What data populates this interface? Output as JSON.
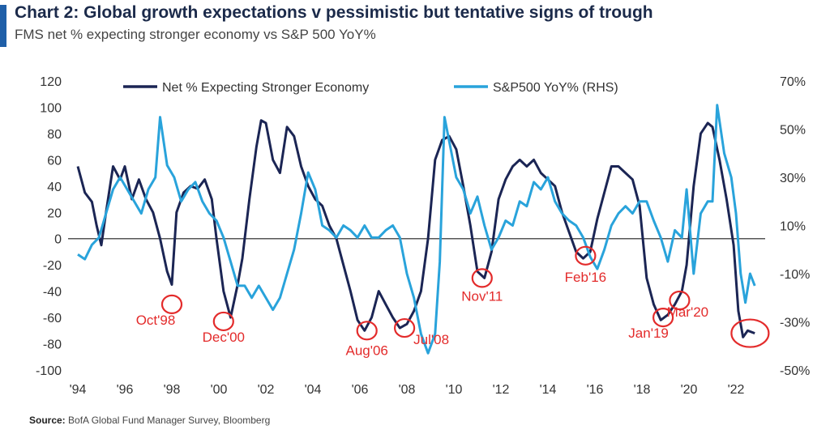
{
  "header": {
    "title": "Chart 2: Global growth expectations v pessimistic but tentative signs of trough",
    "subtitle": "FMS net % expecting stronger economy vs S&P 500 YoY%"
  },
  "footer": {
    "source_label": "Source:",
    "source_text": "BofA Global Fund Manager Survey, Bloomberg"
  },
  "colors": {
    "fms": "#1b2554",
    "spx": "#29a3db",
    "annotation": "#e32b2b",
    "zero": "#555555"
  },
  "chart_data": {
    "type": "line",
    "grid": false,
    "legend_position": "top",
    "x_ticks": [
      "'94",
      "'96",
      "'98",
      "'00",
      "'02",
      "'04",
      "'06",
      "'08",
      "'10",
      "'12",
      "'14",
      "'16",
      "'18",
      "'20",
      "'22"
    ],
    "y_left": {
      "ticks": [
        "120",
        "100",
        "80",
        "60",
        "40",
        "20",
        "0",
        "-20",
        "-40",
        "-60",
        "-80",
        "-100"
      ],
      "lim": [
        -100,
        120
      ]
    },
    "y_right": {
      "ticks": [
        "70%",
        "50%",
        "30%",
        "10%",
        "-10%",
        "-30%",
        "-50%"
      ],
      "lim": [
        -50,
        70
      ]
    },
    "series": [
      {
        "name": "Net % Expecting Stronger Economy",
        "axis": "left",
        "points": [
          [
            1994.0,
            55
          ],
          [
            1994.3,
            35
          ],
          [
            1994.6,
            28
          ],
          [
            1994.8,
            10
          ],
          [
            1995.0,
            -5
          ],
          [
            1995.2,
            20
          ],
          [
            1995.5,
            55
          ],
          [
            1995.8,
            45
          ],
          [
            1996.0,
            55
          ],
          [
            1996.3,
            30
          ],
          [
            1996.6,
            45
          ],
          [
            1996.9,
            30
          ],
          [
            1997.2,
            20
          ],
          [
            1997.5,
            0
          ],
          [
            1997.8,
            -25
          ],
          [
            1998.0,
            -35
          ],
          [
            1998.2,
            20
          ],
          [
            1998.5,
            35
          ],
          [
            1998.8,
            40
          ],
          [
            1999.1,
            38
          ],
          [
            1999.4,
            45
          ],
          [
            1999.7,
            30
          ],
          [
            1999.9,
            0
          ],
          [
            2000.2,
            -40
          ],
          [
            2000.5,
            -60
          ],
          [
            2000.8,
            -35
          ],
          [
            2001.0,
            -15
          ],
          [
            2001.3,
            30
          ],
          [
            2001.6,
            70
          ],
          [
            2001.8,
            90
          ],
          [
            2002.0,
            88
          ],
          [
            2002.3,
            60
          ],
          [
            2002.6,
            50
          ],
          [
            2002.9,
            85
          ],
          [
            2003.2,
            78
          ],
          [
            2003.5,
            55
          ],
          [
            2003.8,
            40
          ],
          [
            2004.1,
            30
          ],
          [
            2004.4,
            25
          ],
          [
            2004.7,
            10
          ],
          [
            2005.0,
            0
          ],
          [
            2005.3,
            -20
          ],
          [
            2005.6,
            -40
          ],
          [
            2005.9,
            -62
          ],
          [
            2006.2,
            -70
          ],
          [
            2006.5,
            -60
          ],
          [
            2006.8,
            -40
          ],
          [
            2007.1,
            -50
          ],
          [
            2007.4,
            -60
          ],
          [
            2007.7,
            -68
          ],
          [
            2008.0,
            -65
          ],
          [
            2008.3,
            -55
          ],
          [
            2008.6,
            -40
          ],
          [
            2008.9,
            0
          ],
          [
            2009.2,
            60
          ],
          [
            2009.5,
            75
          ],
          [
            2009.8,
            78
          ],
          [
            2010.1,
            68
          ],
          [
            2010.4,
            40
          ],
          [
            2010.7,
            10
          ],
          [
            2011.0,
            -25
          ],
          [
            2011.3,
            -30
          ],
          [
            2011.6,
            -10
          ],
          [
            2011.9,
            30
          ],
          [
            2012.2,
            45
          ],
          [
            2012.5,
            55
          ],
          [
            2012.8,
            60
          ],
          [
            2013.1,
            55
          ],
          [
            2013.4,
            60
          ],
          [
            2013.7,
            50
          ],
          [
            2014.0,
            45
          ],
          [
            2014.3,
            40
          ],
          [
            2014.6,
            20
          ],
          [
            2014.9,
            5
          ],
          [
            2015.2,
            -10
          ],
          [
            2015.5,
            -15
          ],
          [
            2015.8,
            -10
          ],
          [
            2016.1,
            15
          ],
          [
            2016.4,
            35
          ],
          [
            2016.7,
            55
          ],
          [
            2017.0,
            55
          ],
          [
            2017.3,
            50
          ],
          [
            2017.6,
            45
          ],
          [
            2017.9,
            25
          ],
          [
            2018.2,
            -30
          ],
          [
            2018.5,
            -50
          ],
          [
            2018.8,
            -62
          ],
          [
            2019.1,
            -58
          ],
          [
            2019.4,
            -50
          ],
          [
            2019.7,
            -40
          ],
          [
            2019.9,
            -20
          ],
          [
            2020.2,
            40
          ],
          [
            2020.5,
            80
          ],
          [
            2020.8,
            88
          ],
          [
            2021.0,
            85
          ],
          [
            2021.3,
            60
          ],
          [
            2021.6,
            30
          ],
          [
            2021.9,
            -5
          ],
          [
            2022.1,
            -55
          ],
          [
            2022.3,
            -75
          ],
          [
            2022.5,
            -70
          ],
          [
            2022.8,
            -72
          ]
        ]
      },
      {
        "name": "S&P500 YoY% (RHS)",
        "axis": "right",
        "points": [
          [
            1994.0,
            -2
          ],
          [
            1994.3,
            -4
          ],
          [
            1994.6,
            2
          ],
          [
            1994.9,
            5
          ],
          [
            1995.2,
            15
          ],
          [
            1995.5,
            25
          ],
          [
            1995.8,
            30
          ],
          [
            1996.1,
            25
          ],
          [
            1996.4,
            20
          ],
          [
            1996.7,
            15
          ],
          [
            1997.0,
            25
          ],
          [
            1997.3,
            30
          ],
          [
            1997.5,
            55
          ],
          [
            1997.8,
            35
          ],
          [
            1998.1,
            30
          ],
          [
            1998.4,
            20
          ],
          [
            1998.7,
            25
          ],
          [
            1999.0,
            28
          ],
          [
            1999.3,
            20
          ],
          [
            1999.6,
            15
          ],
          [
            1999.9,
            12
          ],
          [
            2000.2,
            5
          ],
          [
            2000.5,
            -5
          ],
          [
            2000.8,
            -15
          ],
          [
            2001.1,
            -15
          ],
          [
            2001.4,
            -20
          ],
          [
            2001.7,
            -15
          ],
          [
            2002.0,
            -20
          ],
          [
            2002.3,
            -25
          ],
          [
            2002.6,
            -20
          ],
          [
            2002.9,
            -10
          ],
          [
            2003.2,
            0
          ],
          [
            2003.5,
            15
          ],
          [
            2003.8,
            32
          ],
          [
            2004.1,
            25
          ],
          [
            2004.4,
            10
          ],
          [
            2004.7,
            8
          ],
          [
            2005.0,
            5
          ],
          [
            2005.3,
            10
          ],
          [
            2005.6,
            8
          ],
          [
            2005.9,
            5
          ],
          [
            2006.2,
            10
          ],
          [
            2006.5,
            5
          ],
          [
            2006.8,
            5
          ],
          [
            2007.1,
            8
          ],
          [
            2007.4,
            10
          ],
          [
            2007.7,
            5
          ],
          [
            2008.0,
            -10
          ],
          [
            2008.3,
            -20
          ],
          [
            2008.6,
            -35
          ],
          [
            2008.9,
            -43
          ],
          [
            2009.2,
            -35
          ],
          [
            2009.4,
            -5
          ],
          [
            2009.6,
            55
          ],
          [
            2009.8,
            45
          ],
          [
            2010.1,
            30
          ],
          [
            2010.4,
            25
          ],
          [
            2010.7,
            15
          ],
          [
            2011.0,
            22
          ],
          [
            2011.3,
            10
          ],
          [
            2011.6,
            0
          ],
          [
            2011.9,
            5
          ],
          [
            2012.2,
            12
          ],
          [
            2012.5,
            10
          ],
          [
            2012.8,
            20
          ],
          [
            2013.1,
            18
          ],
          [
            2013.4,
            28
          ],
          [
            2013.7,
            25
          ],
          [
            2014.0,
            30
          ],
          [
            2014.3,
            20
          ],
          [
            2014.6,
            15
          ],
          [
            2014.9,
            12
          ],
          [
            2015.2,
            10
          ],
          [
            2015.5,
            5
          ],
          [
            2015.8,
            -3
          ],
          [
            2016.1,
            -8
          ],
          [
            2016.4,
            0
          ],
          [
            2016.7,
            10
          ],
          [
            2017.0,
            15
          ],
          [
            2017.3,
            18
          ],
          [
            2017.6,
            15
          ],
          [
            2017.9,
            20
          ],
          [
            2018.2,
            20
          ],
          [
            2018.5,
            12
          ],
          [
            2018.8,
            5
          ],
          [
            2019.1,
            -5
          ],
          [
            2019.4,
            8
          ],
          [
            2019.7,
            5
          ],
          [
            2019.9,
            25
          ],
          [
            2020.2,
            -10
          ],
          [
            2020.5,
            15
          ],
          [
            2020.8,
            20
          ],
          [
            2021.0,
            20
          ],
          [
            2021.2,
            60
          ],
          [
            2021.5,
            40
          ],
          [
            2021.8,
            30
          ],
          [
            2022.0,
            15
          ],
          [
            2022.2,
            -10
          ],
          [
            2022.4,
            -22
          ],
          [
            2022.6,
            -10
          ],
          [
            2022.8,
            -15
          ]
        ]
      }
    ],
    "annotations": [
      {
        "label": "Oct'98",
        "x": 1998.0,
        "y": -50
      },
      {
        "label": "Dec'00",
        "x": 2000.2,
        "y": -63
      },
      {
        "label": "Aug'06",
        "x": 2006.3,
        "y": -70
      },
      {
        "label": "Jul'08",
        "x": 2007.9,
        "y": -68
      },
      {
        "label": "Nov'11",
        "x": 2011.2,
        "y": -30
      },
      {
        "label": "Feb'16",
        "x": 2015.6,
        "y": -13
      },
      {
        "label": "Jan'19",
        "x": 2018.9,
        "y": -60
      },
      {
        "label": "Mar'20",
        "x": 2019.6,
        "y": -47
      },
      {
        "label": "",
        "x": 2022.6,
        "y": -72
      }
    ]
  }
}
